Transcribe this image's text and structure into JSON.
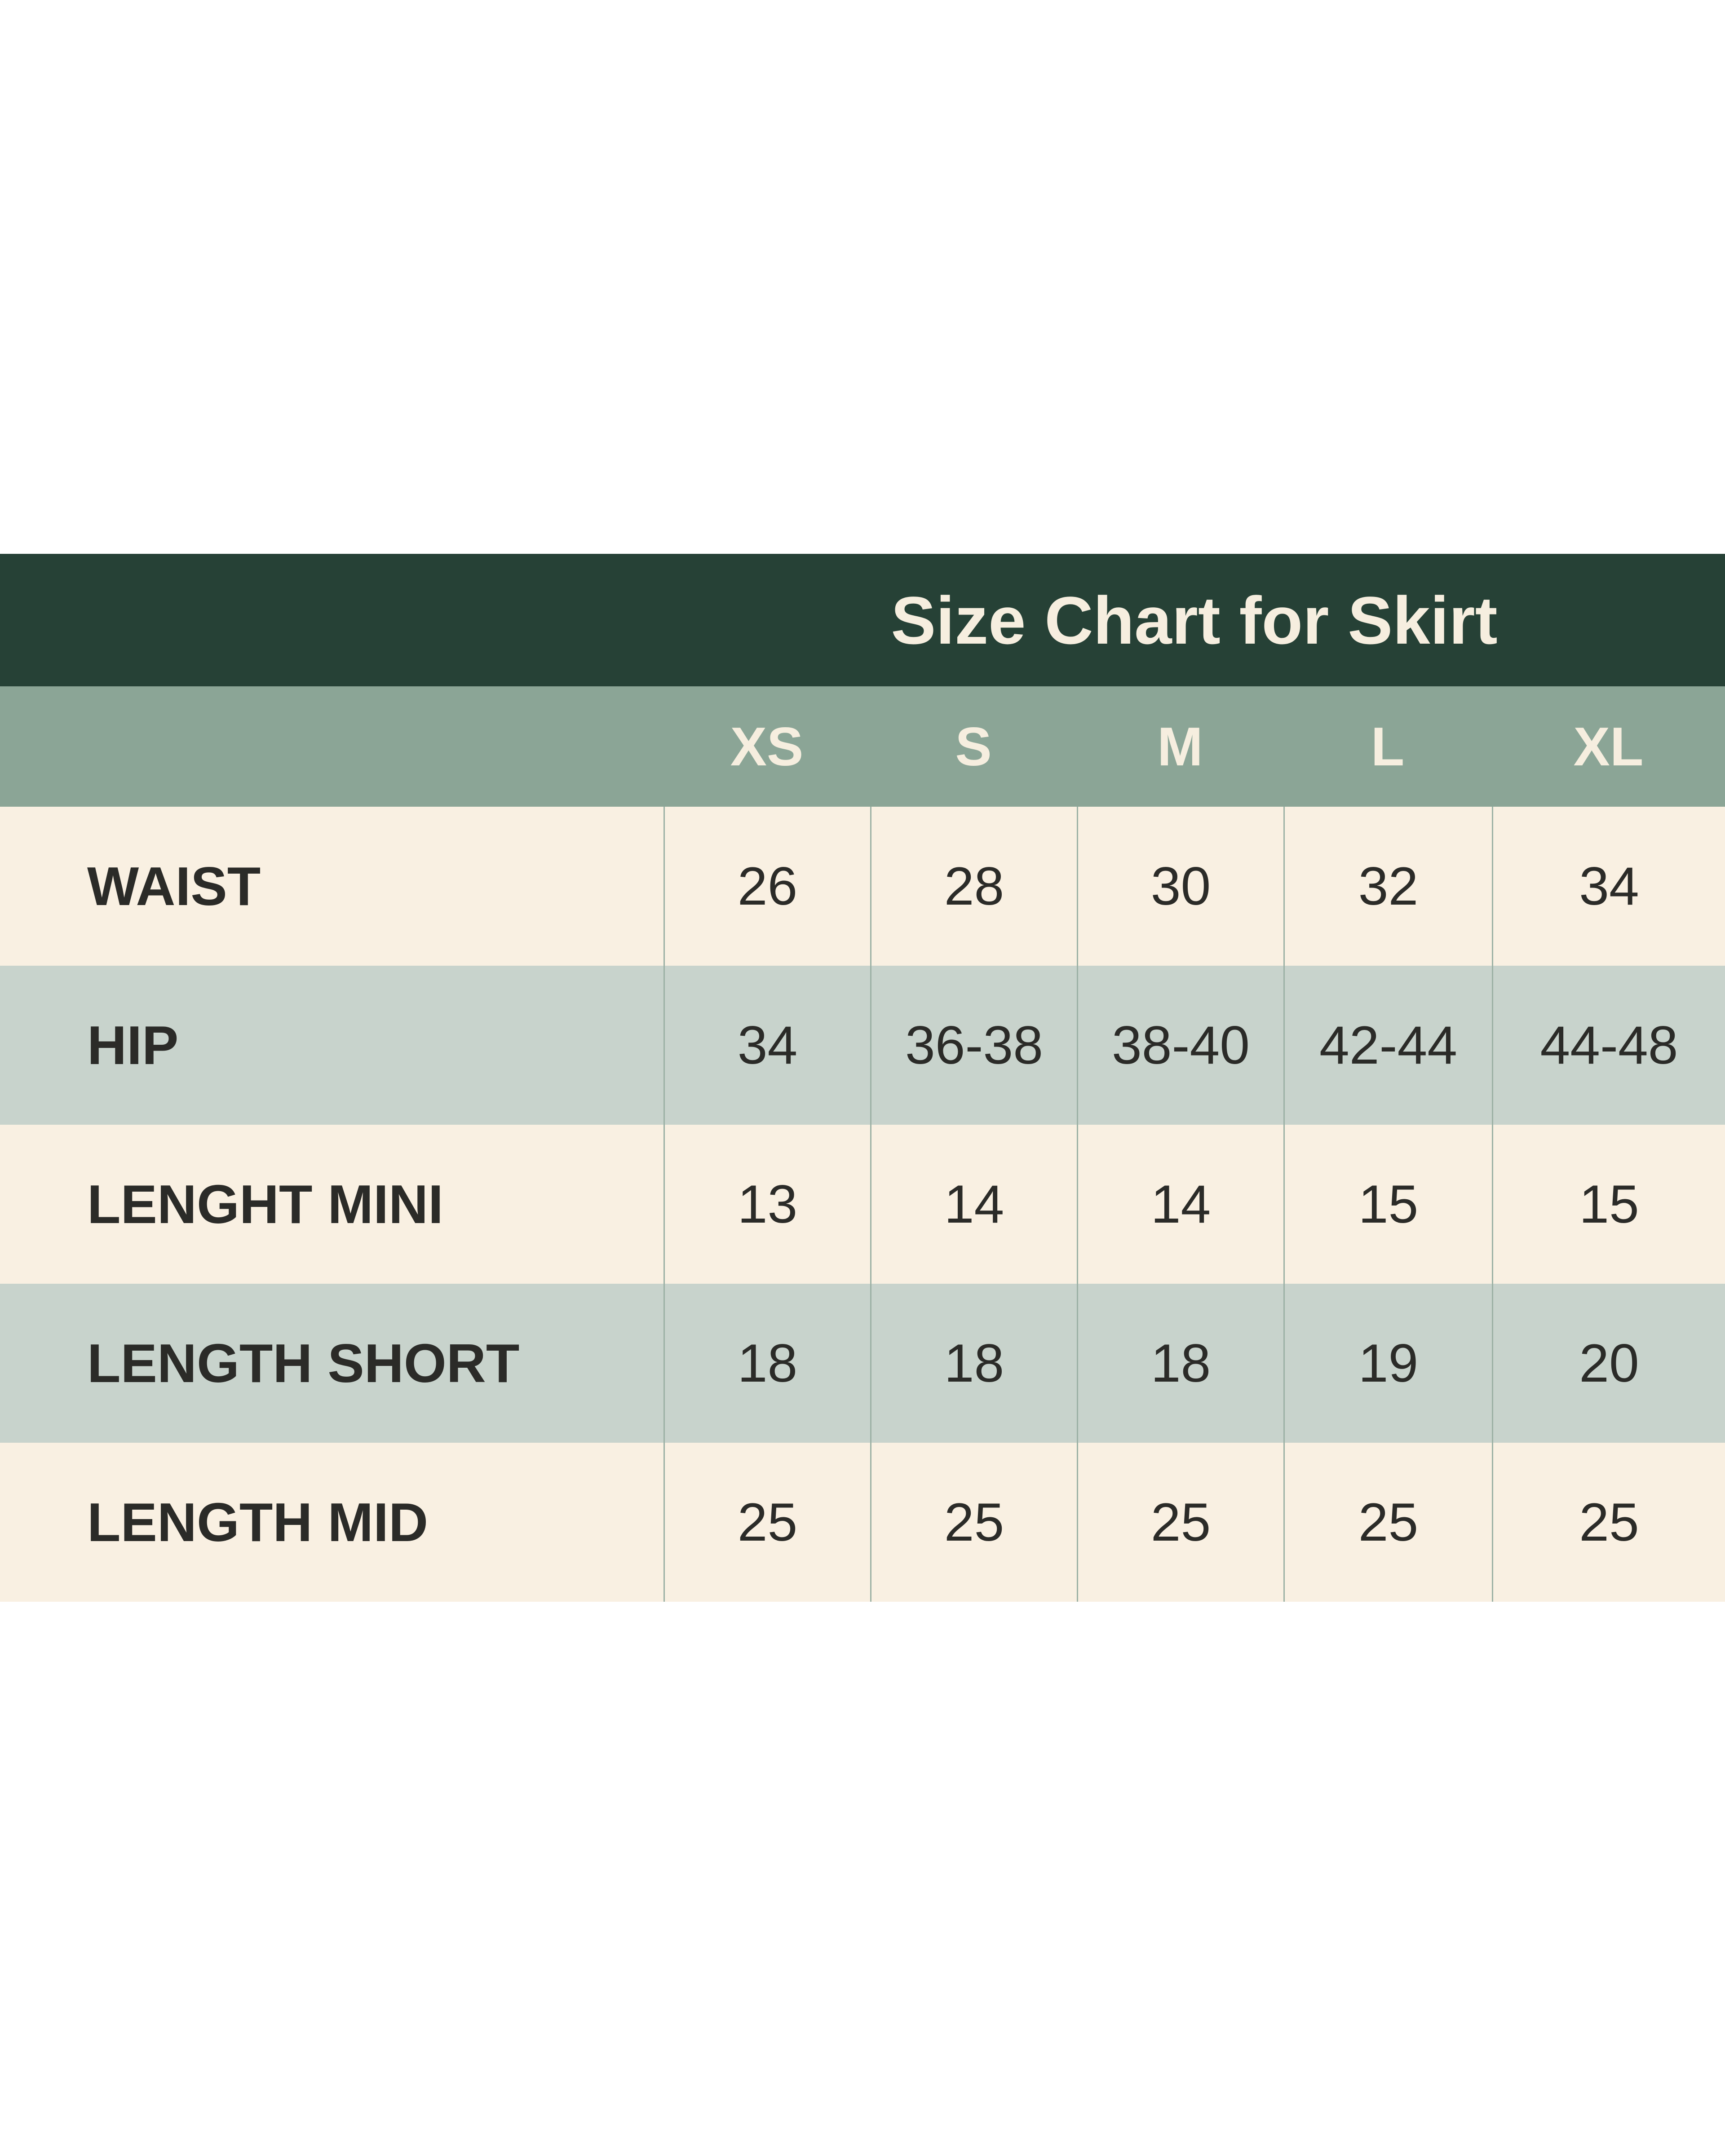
{
  "page": {
    "background": "#ffffff"
  },
  "table": {
    "title": "Size Chart for Skirt",
    "columns": [
      "XS",
      "S",
      "M",
      "L",
      "XL"
    ],
    "rows": [
      {
        "label": "WAIST",
        "values": [
          "26",
          "28",
          "30",
          "32",
          "34"
        ]
      },
      {
        "label": "HIP",
        "values": [
          "34",
          "36-38",
          "38-40",
          "42-44",
          "44-48"
        ]
      },
      {
        "label": "LENGHT MINI",
        "values": [
          "13",
          "14",
          "14",
          "15",
          "15"
        ]
      },
      {
        "label": "LENGTH SHORT",
        "values": [
          "18",
          "18",
          "18",
          "19",
          "20"
        ]
      },
      {
        "label": "LENGTH MID",
        "values": [
          "25",
          "25",
          "25",
          "25",
          "25"
        ]
      }
    ],
    "colors": {
      "header_bg": "#264136",
      "header_text": "#f6eedf",
      "subheader_bg": "#8ba596",
      "subheader_text": "#f6eedf",
      "row_cream_bg": "#f9f0e2",
      "row_sage_bg": "#c8d3cc",
      "cell_text": "#2b2b28",
      "divider": "#9cb1a5"
    }
  },
  "chart_data": {
    "type": "table",
    "title": "Size Chart for Skirt",
    "columns": [
      "",
      "XS",
      "S",
      "M",
      "L",
      "XL"
    ],
    "rows": [
      [
        "WAIST",
        "26",
        "28",
        "30",
        "32",
        "34"
      ],
      [
        "HIP",
        "34",
        "36-38",
        "38-40",
        "42-44",
        "44-48"
      ],
      [
        "LENGHT MINI",
        "13",
        "14",
        "14",
        "15",
        "15"
      ],
      [
        "LENGTH SHORT",
        "18",
        "18",
        "18",
        "19",
        "20"
      ],
      [
        "LENGTH MID",
        "25",
        "25",
        "25",
        "25",
        "25"
      ]
    ]
  }
}
